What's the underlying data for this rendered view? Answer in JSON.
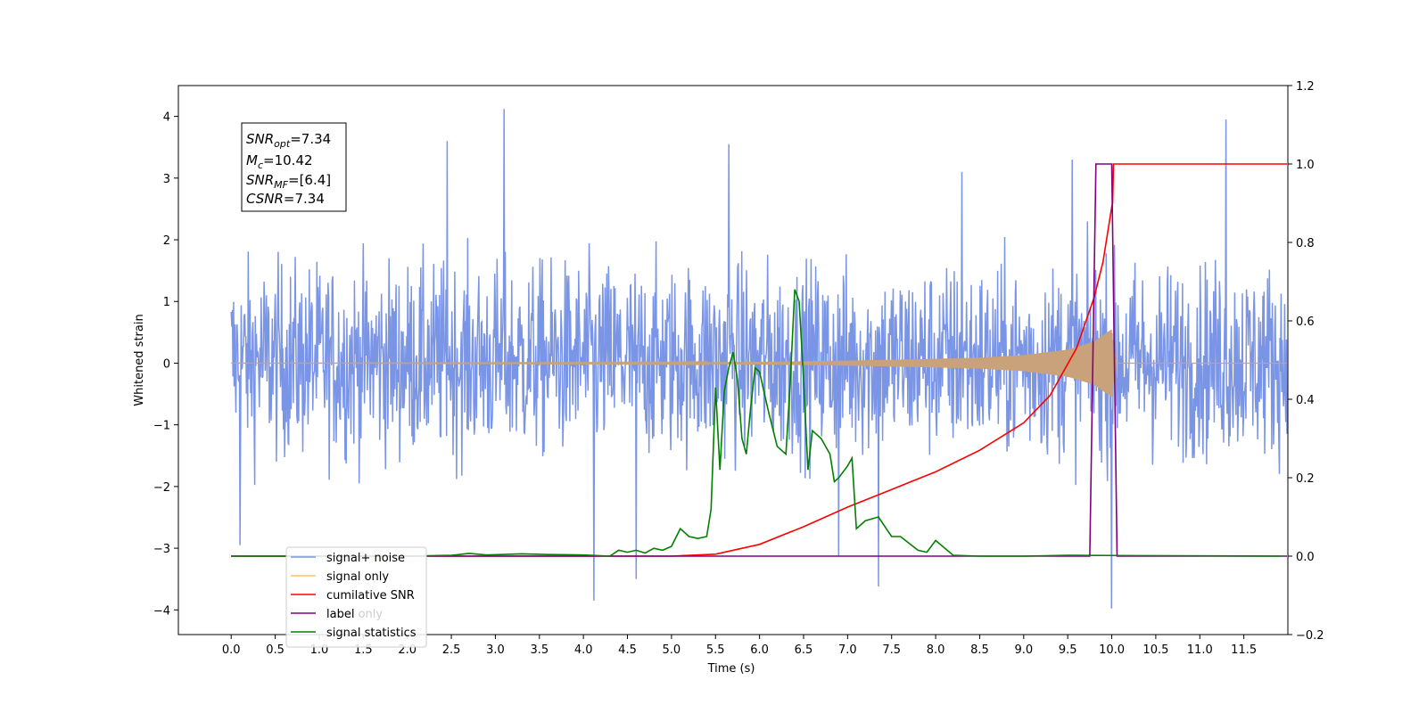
{
  "chart_data": {
    "type": "line",
    "xlabel": "Time (s)",
    "ylabel": "Whitened strain",
    "ylabel_right": "",
    "xlim": [
      -0.6,
      12.0
    ],
    "ylim": [
      -4.4,
      4.5
    ],
    "ylim_right": [
      -0.2,
      1.2
    ],
    "x_ticks": [
      "0.0",
      "0.5",
      "1.0",
      "1.5",
      "2.0",
      "2.5",
      "3.0",
      "3.5",
      "4.0",
      "4.5",
      "5.0",
      "5.5",
      "6.0",
      "6.5",
      "7.0",
      "7.5",
      "8.0",
      "8.5",
      "9.0",
      "9.5",
      "10.0",
      "10.5",
      "11.0",
      "11.5"
    ],
    "y_ticks_left": [
      "4",
      "3",
      "2",
      "1",
      "0",
      "−1",
      "−2",
      "−3",
      "−4"
    ],
    "y_ticks_right": [
      "1.2",
      "1.0",
      "0.8",
      "0.6",
      "0.4",
      "0.2",
      "0.0",
      "−0.2"
    ],
    "annotation": {
      "lines": [
        {
          "main": "SNR",
          "sub": "opt",
          "value": "=7.34"
        },
        {
          "main": "M",
          "sub": "c",
          "value": "=10.42"
        },
        {
          "main": "SNR",
          "sub": "MF",
          "value": "=[6.4]"
        },
        {
          "main": "CSNR",
          "sub": "",
          "value": "=7.34"
        }
      ]
    },
    "legend": {
      "placement": "lower-left",
      "entries": [
        {
          "label": "signal+ noise",
          "color": "#7b95e6"
        },
        {
          "label": "signal only",
          "color": "#ffbf66"
        },
        {
          "label": "cumilative SNR",
          "color": "#ff0000"
        },
        {
          "label": "label",
          "color": "#800080"
        },
        {
          "label": "signal statistics",
          "color": "#008000"
        }
      ],
      "hidden_label": "label only"
    },
    "series": [
      {
        "name": "signal+ noise",
        "axis": "left",
        "color": "#7b95e6",
        "x_start": 0.0,
        "x_end": 11.99,
        "n_samples": 1800,
        "typical_band": [
          -1.8,
          2.0
        ],
        "peaks": [
          {
            "x": 3.1,
            "y": 4.12
          },
          {
            "x": 11.3,
            "y": 3.95
          },
          {
            "x": 2.45,
            "y": 3.6
          },
          {
            "x": 5.65,
            "y": 3.55
          },
          {
            "x": 4.12,
            "y": -3.85
          },
          {
            "x": 10.0,
            "y": -3.98
          },
          {
            "x": 7.35,
            "y": -3.62
          },
          {
            "x": 4.6,
            "y": -3.5
          },
          {
            "x": 0.1,
            "y": -2.95
          },
          {
            "x": 6.9,
            "y": -3.12
          },
          {
            "x": 8.3,
            "y": 3.1
          },
          {
            "x": 9.55,
            "y": 3.3
          }
        ]
      },
      {
        "name": "signal only",
        "axis": "left",
        "color": "#c9a17a",
        "x": [
          0.0,
          5.0,
          6.0,
          7.0,
          8.0,
          8.5,
          9.0,
          9.5,
          9.8,
          10.0,
          10.05,
          11.99
        ],
        "envelope": [
          0.0,
          0.01,
          0.02,
          0.04,
          0.07,
          0.09,
          0.13,
          0.22,
          0.35,
          0.55,
          0.0,
          0.0
        ]
      },
      {
        "name": "cumilative SNR",
        "axis": "right",
        "color": "#ff0000",
        "x": [
          0.0,
          5.0,
          5.5,
          6.0,
          6.5,
          7.0,
          7.5,
          8.0,
          8.5,
          9.0,
          9.3,
          9.6,
          9.8,
          9.9,
          10.0,
          10.01,
          10.02,
          11.99
        ],
        "values": [
          0.0,
          0.0,
          0.005,
          0.03,
          0.075,
          0.125,
          0.17,
          0.215,
          0.27,
          0.34,
          0.41,
          0.53,
          0.66,
          0.75,
          0.89,
          0.9,
          1.0,
          1.0
        ]
      },
      {
        "name": "label",
        "axis": "right",
        "color": "#800080",
        "x": [
          0.0,
          9.75,
          9.82,
          10.0,
          10.06,
          11.99
        ],
        "values": [
          0.0,
          0.0,
          1.0,
          1.0,
          0.0,
          0.0
        ]
      },
      {
        "name": "signal statistics",
        "axis": "right",
        "color": "#008000",
        "x": [
          0.0,
          2.0,
          2.5,
          2.7,
          2.9,
          3.3,
          3.6,
          4.0,
          4.3,
          4.4,
          4.5,
          4.6,
          4.7,
          4.8,
          4.9,
          5.0,
          5.1,
          5.2,
          5.3,
          5.4,
          5.45,
          5.5,
          5.55,
          5.6,
          5.65,
          5.7,
          5.75,
          5.8,
          5.85,
          5.9,
          5.95,
          6.0,
          6.1,
          6.2,
          6.3,
          6.35,
          6.4,
          6.45,
          6.5,
          6.55,
          6.6,
          6.7,
          6.8,
          6.85,
          6.9,
          7.0,
          7.05,
          7.1,
          7.2,
          7.35,
          7.5,
          7.6,
          7.8,
          7.9,
          8.0,
          8.2,
          8.5,
          9.0,
          9.5,
          11.93
        ],
        "values": [
          0.0,
          0.0,
          0.002,
          0.007,
          0.003,
          0.006,
          0.004,
          0.003,
          0.0,
          0.015,
          0.01,
          0.015,
          0.008,
          0.02,
          0.015,
          0.025,
          0.07,
          0.05,
          0.045,
          0.05,
          0.12,
          0.43,
          0.22,
          0.42,
          0.48,
          0.52,
          0.45,
          0.3,
          0.26,
          0.38,
          0.48,
          0.47,
          0.37,
          0.28,
          0.26,
          0.45,
          0.68,
          0.65,
          0.45,
          0.22,
          0.32,
          0.3,
          0.26,
          0.19,
          0.2,
          0.23,
          0.25,
          0.07,
          0.09,
          0.1,
          0.05,
          0.05,
          0.015,
          0.01,
          0.04,
          0.002,
          0.0,
          0.0,
          0.002,
          0.0
        ]
      }
    ]
  }
}
